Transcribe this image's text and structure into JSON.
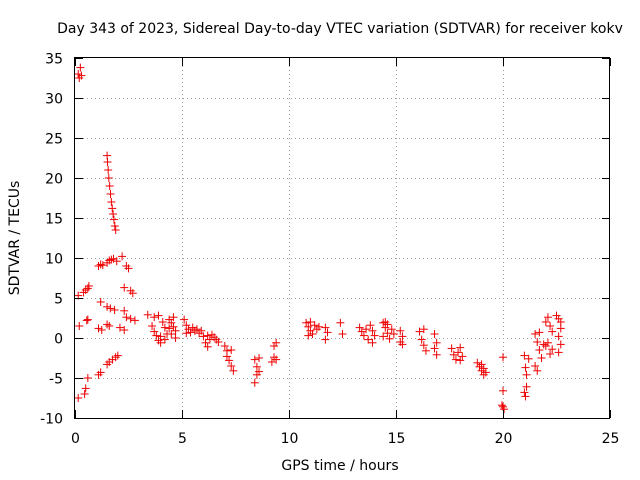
{
  "chart_data": {
    "type": "scatter",
    "title": "Day 343 of 2023, Sidereal Day-to-day VTEC variation (SDTVAR) for receiver kokv",
    "xlabel": "GPS time / hours",
    "ylabel": "SDTVAR / TECUs",
    "xlim": [
      0,
      25
    ],
    "ylim": [
      -10,
      35
    ],
    "x_ticks": [
      0,
      5,
      10,
      15,
      20,
      25
    ],
    "y_ticks": [
      -10,
      -5,
      0,
      5,
      10,
      15,
      20,
      25,
      30,
      35
    ],
    "x_tick_labels": [
      "0",
      "5",
      "10",
      "15",
      "20",
      "25"
    ],
    "y_tick_labels": [
      "-10",
      "-5",
      "0",
      "5",
      "10",
      "15",
      "20",
      "25",
      "30",
      "35"
    ],
    "grid": true,
    "marker": "+",
    "marker_color": "#ee0000",
    "series": [
      {
        "name": "SDTVAR",
        "points": [
          [
            0.15,
            -7.5
          ],
          [
            0.2,
            1.5
          ],
          [
            0.15,
            5.3
          ],
          [
            0.2,
            32.5
          ],
          [
            0.25,
            33.8
          ],
          [
            0.15,
            33.0
          ],
          [
            0.3,
            32.8
          ],
          [
            0.4,
            5.7
          ],
          [
            0.5,
            6.0
          ],
          [
            0.55,
            2.2
          ],
          [
            0.5,
            -6.3
          ],
          [
            0.6,
            -5.0
          ],
          [
            0.6,
            6.2
          ],
          [
            0.65,
            6.5
          ],
          [
            0.6,
            2.3
          ],
          [
            0.45,
            -7.0
          ],
          [
            1.1,
            9.0
          ],
          [
            1.2,
            9.2
          ],
          [
            1.3,
            9.1
          ],
          [
            1.1,
            -4.6
          ],
          [
            1.2,
            -4.3
          ],
          [
            1.2,
            4.5
          ],
          [
            1.1,
            1.2
          ],
          [
            1.25,
            1.0
          ],
          [
            1.5,
            22.8
          ],
          [
            1.52,
            22.0
          ],
          [
            1.55,
            21.0
          ],
          [
            1.58,
            20.0
          ],
          [
            1.62,
            19.0
          ],
          [
            1.66,
            18.0
          ],
          [
            1.7,
            17.0
          ],
          [
            1.74,
            16.2
          ],
          [
            1.78,
            15.5
          ],
          [
            1.82,
            14.8
          ],
          [
            1.86,
            14.0
          ],
          [
            1.9,
            13.5
          ],
          [
            1.5,
            9.4
          ],
          [
            1.6,
            9.7
          ],
          [
            1.7,
            9.8
          ],
          [
            1.8,
            9.9
          ],
          [
            1.95,
            9.6
          ],
          [
            1.5,
            3.9
          ],
          [
            1.65,
            3.7
          ],
          [
            1.85,
            3.5
          ],
          [
            1.5,
            1.7
          ],
          [
            1.6,
            1.5
          ],
          [
            1.5,
            -3.3
          ],
          [
            1.6,
            -3.0
          ],
          [
            1.75,
            -2.7
          ],
          [
            1.9,
            -2.4
          ],
          [
            2.0,
            -2.2
          ],
          [
            2.2,
            10.2
          ],
          [
            2.4,
            9.0
          ],
          [
            2.5,
            8.7
          ],
          [
            2.3,
            6.3
          ],
          [
            2.6,
            5.9
          ],
          [
            2.7,
            5.6
          ],
          [
            2.3,
            3.4
          ],
          [
            2.4,
            2.6
          ],
          [
            2.6,
            2.4
          ],
          [
            2.8,
            2.2
          ],
          [
            2.1,
            1.3
          ],
          [
            2.3,
            1.0
          ],
          [
            3.4,
            2.9
          ],
          [
            3.6,
            1.5
          ],
          [
            3.7,
            0.8
          ],
          [
            3.8,
            0.3
          ],
          [
            3.9,
            -0.3
          ],
          [
            4.0,
            -0.6
          ],
          [
            3.7,
            2.6
          ],
          [
            3.9,
            2.8
          ],
          [
            4.1,
            2.0
          ],
          [
            4.2,
            1.3
          ],
          [
            4.3,
            0.5
          ],
          [
            4.0,
            0.2
          ],
          [
            4.2,
            -0.2
          ],
          [
            4.4,
            2.3
          ],
          [
            4.5,
            1.9
          ],
          [
            4.6,
            1.4
          ],
          [
            4.7,
            0.9
          ],
          [
            4.5,
            0.5
          ],
          [
            4.7,
            0.0
          ],
          [
            4.6,
            2.6
          ],
          [
            4.4,
            1.2
          ],
          [
            5.1,
            2.3
          ],
          [
            5.2,
            1.6
          ],
          [
            5.3,
            1.1
          ],
          [
            5.4,
            0.7
          ],
          [
            5.5,
            1.3
          ],
          [
            5.6,
            0.9
          ],
          [
            5.7,
            1.1
          ],
          [
            5.8,
            0.6
          ],
          [
            5.2,
            0.6
          ],
          [
            5.9,
            0.9
          ],
          [
            6.0,
            0.2
          ],
          [
            6.1,
            -0.6
          ],
          [
            6.2,
            -1.1
          ],
          [
            6.3,
            -0.2
          ],
          [
            6.4,
            0.4
          ],
          [
            6.6,
            -0.2
          ],
          [
            6.7,
            -0.5
          ],
          [
            6.5,
            0.1
          ],
          [
            6.2,
            0.3
          ],
          [
            7.0,
            -1.0
          ],
          [
            7.1,
            -1.6
          ],
          [
            7.2,
            -2.8
          ],
          [
            7.3,
            -3.5
          ],
          [
            7.4,
            -4.1
          ],
          [
            7.3,
            -1.5
          ],
          [
            7.1,
            -2.3
          ],
          [
            8.4,
            -2.7
          ],
          [
            8.5,
            -3.6
          ],
          [
            8.5,
            -4.6
          ],
          [
            8.4,
            -5.6
          ],
          [
            8.6,
            -4.2
          ],
          [
            8.6,
            -2.5
          ],
          [
            9.3,
            -1.0
          ],
          [
            9.4,
            -0.6
          ],
          [
            9.3,
            -2.4
          ],
          [
            9.2,
            -3.0
          ],
          [
            9.4,
            -2.7
          ],
          [
            10.8,
            1.9
          ],
          [
            10.9,
            1.4
          ],
          [
            11.0,
            0.9
          ],
          [
            11.1,
            0.5
          ],
          [
            11.2,
            1.6
          ],
          [
            11.3,
            1.1
          ],
          [
            11.0,
            2.0
          ],
          [
            10.9,
            0.3
          ],
          [
            11.4,
            1.4
          ],
          [
            11.7,
            1.3
          ],
          [
            11.8,
            0.7
          ],
          [
            11.7,
            -0.2
          ],
          [
            12.4,
            1.9
          ],
          [
            12.5,
            0.5
          ],
          [
            13.3,
            1.3
          ],
          [
            13.4,
            0.8
          ],
          [
            13.5,
            0.3
          ],
          [
            13.7,
            -0.2
          ],
          [
            13.8,
            1.6
          ],
          [
            13.9,
            0.9
          ],
          [
            14.0,
            0.3
          ],
          [
            13.9,
            -0.6
          ],
          [
            13.6,
            1.1
          ],
          [
            14.4,
            1.9
          ],
          [
            14.5,
            1.3
          ],
          [
            14.6,
            0.6
          ],
          [
            14.7,
            -0.1
          ],
          [
            14.5,
            2.0
          ],
          [
            14.6,
            1.7
          ],
          [
            14.8,
            1.1
          ],
          [
            14.9,
            0.5
          ],
          [
            14.4,
            0.2
          ],
          [
            15.2,
            0.9
          ],
          [
            15.3,
            0.2
          ],
          [
            15.2,
            -0.5
          ],
          [
            15.3,
            -0.8
          ],
          [
            16.1,
            0.8
          ],
          [
            16.2,
            -0.2
          ],
          [
            16.3,
            -0.9
          ],
          [
            16.4,
            -1.6
          ],
          [
            16.3,
            1.1
          ],
          [
            16.8,
            0.5
          ],
          [
            16.9,
            -0.6
          ],
          [
            16.8,
            -1.3
          ],
          [
            16.9,
            -2.1
          ],
          [
            17.6,
            -1.3
          ],
          [
            17.7,
            -2.1
          ],
          [
            17.8,
            -2.7
          ],
          [
            17.9,
            -1.8
          ],
          [
            18.0,
            -1.2
          ],
          [
            18.1,
            -2.3
          ],
          [
            18.0,
            -2.8
          ],
          [
            18.8,
            -3.1
          ],
          [
            18.9,
            -3.6
          ],
          [
            19.0,
            -4.1
          ],
          [
            19.1,
            -4.6
          ],
          [
            19.0,
            -3.3
          ],
          [
            19.2,
            -4.3
          ],
          [
            19.1,
            -3.8
          ],
          [
            20.0,
            -2.4
          ],
          [
            20.0,
            -6.6
          ],
          [
            19.95,
            -8.4
          ],
          [
            20.05,
            -8.9
          ],
          [
            20.0,
            -8.6
          ],
          [
            21.0,
            -2.2
          ],
          [
            21.05,
            -3.7
          ],
          [
            21.1,
            -4.6
          ],
          [
            21.0,
            -6.8
          ],
          [
            21.05,
            -7.3
          ],
          [
            21.1,
            -6.1
          ],
          [
            21.2,
            -2.6
          ],
          [
            21.5,
            0.5
          ],
          [
            21.6,
            -0.5
          ],
          [
            21.7,
            -1.5
          ],
          [
            21.8,
            -2.5
          ],
          [
            21.5,
            -3.5
          ],
          [
            21.6,
            -4.1
          ],
          [
            21.9,
            -0.8
          ],
          [
            21.7,
            0.7
          ],
          [
            22.0,
            2.0
          ],
          [
            22.1,
            2.6
          ],
          [
            22.2,
            1.5
          ],
          [
            22.3,
            0.8
          ],
          [
            22.1,
            -0.6
          ],
          [
            22.3,
            -1.4
          ],
          [
            22.2,
            -2.0
          ],
          [
            22.0,
            -1.0
          ],
          [
            22.5,
            2.8
          ],
          [
            22.6,
            2.4
          ],
          [
            22.7,
            2.0
          ],
          [
            22.6,
            0.2
          ],
          [
            22.7,
            -0.8
          ],
          [
            22.6,
            -1.8
          ],
          [
            22.7,
            1.2
          ]
        ]
      }
    ]
  }
}
